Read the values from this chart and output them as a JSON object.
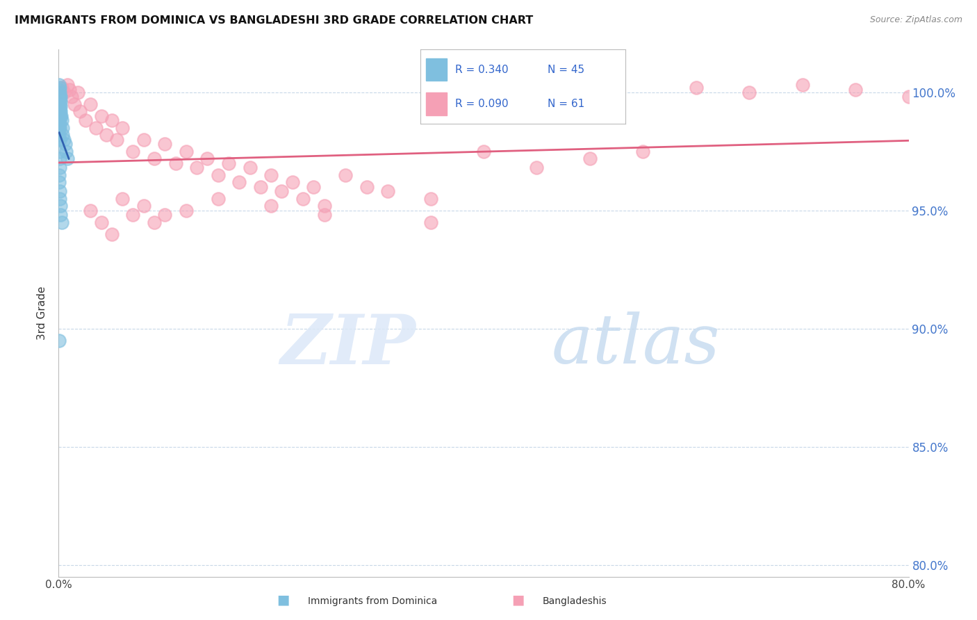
{
  "title": "IMMIGRANTS FROM DOMINICA VS BANGLADESHI 3RD GRADE CORRELATION CHART",
  "source": "Source: ZipAtlas.com",
  "ylabel": "3rd Grade",
  "y_ticks": [
    80.0,
    85.0,
    90.0,
    95.0,
    100.0
  ],
  "y_tick_labels": [
    "80.0%",
    "85.0%",
    "90.0%",
    "95.0%",
    "100.0%"
  ],
  "xlim": [
    0.0,
    80.0
  ],
  "ylim": [
    79.5,
    101.8
  ],
  "dominica_color": "#7fbfdf",
  "bangladeshi_color": "#f5a0b5",
  "dominica_line_color": "#3060b0",
  "bangladeshi_line_color": "#e06080",
  "label_dominica": "Immigrants from Dominica",
  "label_bangladeshi": "Bangladeshis",
  "watermark_zip_color": "#ccd8f0",
  "watermark_atlas_color": "#b8d0ee",
  "legend_r1": "R = 0.340",
  "legend_n1": "N = 45",
  "legend_r2": "R = 0.090",
  "legend_n2": "N = 61",
  "dominica_x": [
    0.05,
    0.05,
    0.05,
    0.05,
    0.05,
    0.05,
    0.05,
    0.05,
    0.05,
    0.05,
    0.08,
    0.08,
    0.08,
    0.08,
    0.08,
    0.1,
    0.1,
    0.1,
    0.1,
    0.12,
    0.12,
    0.15,
    0.15,
    0.18,
    0.2,
    0.2,
    0.25,
    0.3,
    0.35,
    0.4,
    0.5,
    0.6,
    0.7,
    0.8,
    0.1,
    0.12,
    0.08,
    0.06,
    0.07,
    0.09,
    0.11,
    0.15,
    0.2,
    0.3,
    0.05
  ],
  "dominica_y": [
    100.3,
    100.1,
    99.8,
    99.6,
    99.4,
    99.2,
    99.0,
    98.8,
    98.5,
    98.2,
    100.0,
    99.5,
    99.0,
    98.5,
    98.0,
    100.2,
    99.7,
    99.2,
    98.7,
    99.8,
    99.3,
    99.6,
    99.0,
    99.4,
    99.8,
    99.2,
    99.0,
    98.8,
    98.5,
    98.2,
    98.0,
    97.8,
    97.5,
    97.2,
    97.5,
    97.2,
    96.8,
    96.5,
    96.2,
    95.8,
    95.5,
    95.2,
    94.8,
    94.5,
    89.5
  ],
  "bangladeshi_x": [
    0.3,
    0.5,
    0.8,
    1.0,
    1.2,
    1.5,
    1.8,
    2.0,
    2.5,
    3.0,
    3.5,
    4.0,
    4.5,
    5.0,
    5.5,
    6.0,
    7.0,
    8.0,
    9.0,
    10.0,
    11.0,
    12.0,
    13.0,
    14.0,
    15.0,
    16.0,
    17.0,
    18.0,
    19.0,
    20.0,
    21.0,
    22.0,
    23.0,
    24.0,
    25.0,
    27.0,
    29.0,
    31.0,
    35.0,
    40.0,
    45.0,
    50.0,
    55.0,
    60.0,
    65.0,
    70.0,
    75.0,
    80.0,
    3.0,
    4.0,
    5.0,
    6.0,
    7.0,
    8.0,
    9.0,
    10.0,
    12.0,
    15.0,
    20.0,
    25.0,
    35.0
  ],
  "bangladeshi_y": [
    100.2,
    100.0,
    100.3,
    100.1,
    99.8,
    99.5,
    100.0,
    99.2,
    98.8,
    99.5,
    98.5,
    99.0,
    98.2,
    98.8,
    98.0,
    98.5,
    97.5,
    98.0,
    97.2,
    97.8,
    97.0,
    97.5,
    96.8,
    97.2,
    96.5,
    97.0,
    96.2,
    96.8,
    96.0,
    96.5,
    95.8,
    96.2,
    95.5,
    96.0,
    95.2,
    96.5,
    96.0,
    95.8,
    95.5,
    97.5,
    96.8,
    97.2,
    97.5,
    100.2,
    100.0,
    100.3,
    100.1,
    99.8,
    95.0,
    94.5,
    94.0,
    95.5,
    94.8,
    95.2,
    94.5,
    94.8,
    95.0,
    95.5,
    95.2,
    94.8,
    94.5
  ]
}
